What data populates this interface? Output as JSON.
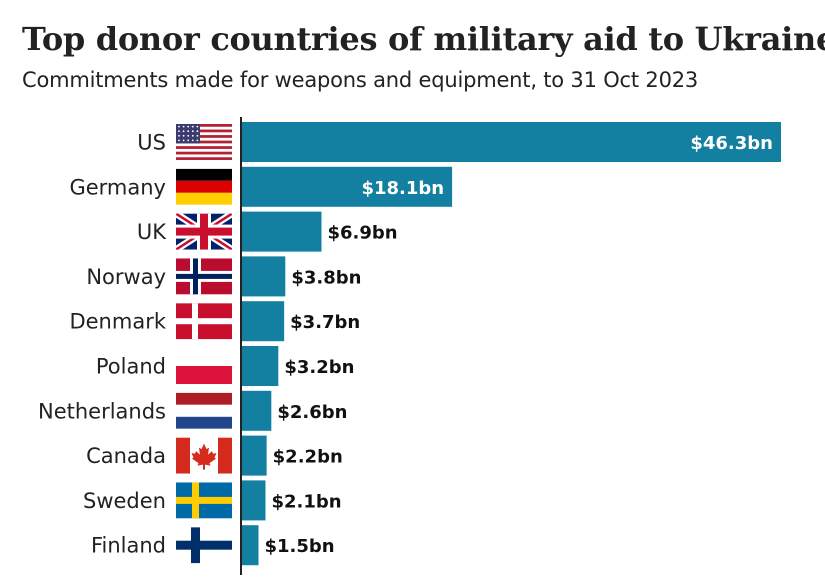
{
  "header": {
    "title": "Top donor countries of military aid to Ukraine",
    "subtitle": "Commitments made for weapons and equipment, to 31 Oct 2023"
  },
  "colors": {
    "bar": "#1380A1",
    "axis": "#222222",
    "label_outside": "#111111",
    "label_inside": "#ffffff"
  },
  "chart_data": {
    "type": "bar",
    "orientation": "horizontal",
    "title": "Top donor countries of military aid to Ukraine",
    "subtitle": "Commitments made for weapons and equipment, to 31 Oct 2023",
    "categories": [
      "US",
      "Germany",
      "UK",
      "Norway",
      "Denmark",
      "Poland",
      "Netherlands",
      "Canada",
      "Sweden",
      "Finland"
    ],
    "values": [
      46.3,
      18.1,
      6.9,
      3.8,
      3.7,
      3.2,
      2.6,
      2.2,
      2.1,
      1.5
    ],
    "value_labels": [
      "$46.3bn",
      "$18.1bn",
      "$6.9bn",
      "$3.8bn",
      "$3.7bn",
      "$3.2bn",
      "$2.6bn",
      "$2.2bn",
      "$2.1bn",
      "$1.5bn"
    ],
    "flags": [
      "us-flag",
      "germany-flag",
      "uk-flag",
      "norway-flag",
      "denmark-flag",
      "poland-flag",
      "netherlands-flag",
      "canada-flag",
      "sweden-flag",
      "finland-flag"
    ],
    "xlim": [
      0,
      46.3
    ],
    "grid": false,
    "legend": "none"
  }
}
